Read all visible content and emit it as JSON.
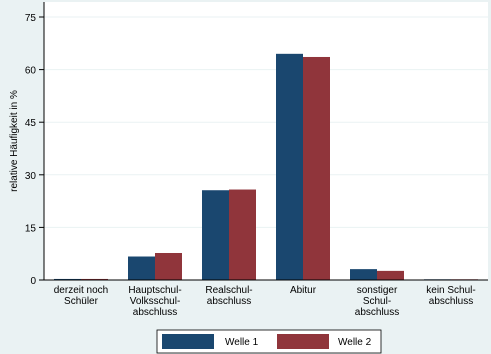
{
  "chart_data": {
    "type": "bar",
    "title": "",
    "xlabel": "",
    "ylabel": "relative Häufigkeit in %",
    "ylim": [
      0,
      75
    ],
    "yticks": [
      0,
      15,
      30,
      45,
      60,
      75
    ],
    "grid": true,
    "legend_position": "bottom",
    "categories": [
      [
        "derzeit noch",
        "Schüler"
      ],
      [
        "Hauptschul-",
        "Volksschul-",
        "abschluss"
      ],
      [
        "Realschul-",
        "abschluss"
      ],
      [
        "Abitur"
      ],
      [
        "sonstiger",
        "Schul-",
        "abschluss"
      ],
      [
        "kein Schul-",
        "abschluss"
      ]
    ],
    "series": [
      {
        "name": "Welle 1",
        "color": "#1a476f",
        "values": [
          0.3,
          6.7,
          25.6,
          64.5,
          3.1,
          0.2
        ]
      },
      {
        "name": "Welle 2",
        "color": "#90353b",
        "values": [
          0.3,
          7.7,
          25.8,
          63.6,
          2.6,
          0.2
        ]
      }
    ]
  }
}
